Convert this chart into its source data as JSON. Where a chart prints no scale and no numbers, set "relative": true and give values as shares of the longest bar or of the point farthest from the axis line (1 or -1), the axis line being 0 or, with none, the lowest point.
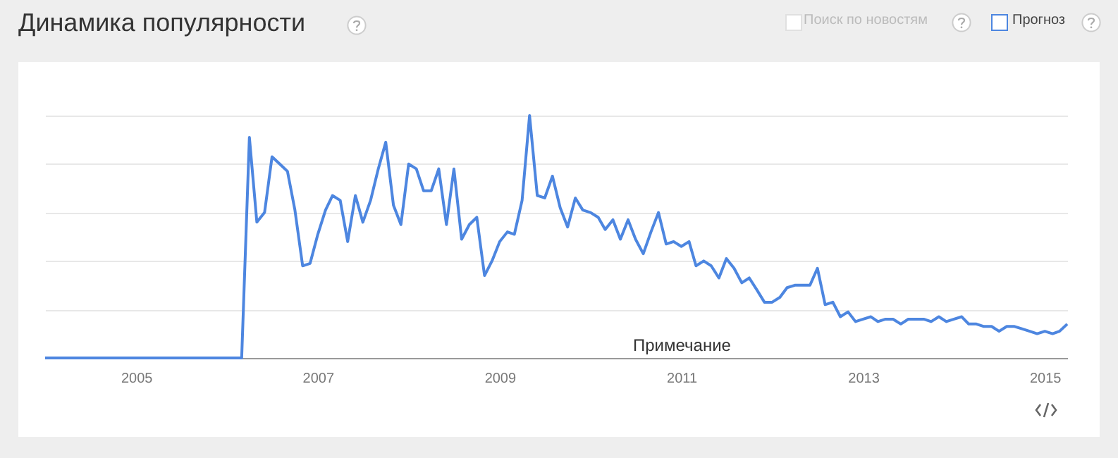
{
  "chart_data": {
    "type": "line",
    "title": "Динамика популярности",
    "relative": true,
    "grid": "y",
    "marker": "none",
    "line_style": "solid",
    "xlim": [
      "2004-01",
      "2015-04"
    ],
    "xticks": [
      "2005",
      "2007",
      "2009",
      "2011",
      "2013",
      "2015"
    ],
    "annotations": [
      "Поиск по новостям",
      "Прогноз",
      "Примечание"
    ],
    "x": [
      "2004-01",
      "2004-02",
      "2004-03",
      "2004-04",
      "2004-05",
      "2004-06",
      "2004-07",
      "2004-08",
      "2004-09",
      "2004-10",
      "2004-11",
      "2004-12",
      "2005-01",
      "2005-02",
      "2005-03",
      "2005-04",
      "2005-05",
      "2005-06",
      "2005-07",
      "2005-08",
      "2005-09",
      "2005-10",
      "2005-11",
      "2005-12",
      "2006-01",
      "2006-02",
      "2006-03",
      "2006-04",
      "2006-05",
      "2006-06",
      "2006-07",
      "2006-08",
      "2006-09",
      "2006-10",
      "2006-11",
      "2006-12",
      "2007-01",
      "2007-02",
      "2007-03",
      "2007-04",
      "2007-05",
      "2007-06",
      "2007-07",
      "2007-08",
      "2007-09",
      "2007-10",
      "2007-11",
      "2007-12",
      "2008-01",
      "2008-02",
      "2008-03",
      "2008-04",
      "2008-05",
      "2008-06",
      "2008-07",
      "2008-08",
      "2008-09",
      "2008-10",
      "2008-11",
      "2008-12",
      "2009-01",
      "2009-02",
      "2009-03",
      "2009-04",
      "2009-05",
      "2009-06",
      "2009-07",
      "2009-08",
      "2009-09",
      "2009-10",
      "2009-11",
      "2009-12",
      "2010-01",
      "2010-02",
      "2010-03",
      "2010-04",
      "2010-05",
      "2010-06",
      "2010-07",
      "2010-08",
      "2010-09",
      "2010-10",
      "2010-11",
      "2010-12",
      "2011-01",
      "2011-02",
      "2011-03",
      "2011-04",
      "2011-05",
      "2011-06",
      "2011-07",
      "2011-08",
      "2011-09",
      "2011-10",
      "2011-11",
      "2011-12",
      "2012-01",
      "2012-02",
      "2012-03",
      "2012-04",
      "2012-05",
      "2012-06",
      "2012-07",
      "2012-08",
      "2012-09",
      "2012-10",
      "2012-11",
      "2012-12",
      "2013-01",
      "2013-02",
      "2013-03",
      "2013-04",
      "2013-05",
      "2013-06",
      "2013-07",
      "2013-08",
      "2013-09",
      "2013-10",
      "2013-11",
      "2013-12",
      "2014-01",
      "2014-02",
      "2014-03",
      "2014-04",
      "2014-05",
      "2014-06",
      "2014-07",
      "2014-08",
      "2014-09",
      "2014-10",
      "2014-11",
      "2014-12",
      "2015-01",
      "2015-02",
      "2015-03",
      "2015-04"
    ],
    "series": [
      {
        "color": "#4d86e0",
        "values": [
          0,
          0,
          0,
          0,
          0,
          0,
          0,
          0,
          0,
          0,
          0,
          0,
          0,
          0,
          0,
          0,
          0,
          0,
          0,
          0,
          0,
          0,
          0,
          0,
          0,
          0,
          0,
          0.91,
          0.56,
          0.6,
          0.83,
          0.8,
          0.77,
          0.61,
          0.38,
          0.39,
          0.51,
          0.61,
          0.67,
          0.65,
          0.48,
          0.67,
          0.56,
          0.65,
          0.78,
          0.89,
          0.63,
          0.55,
          0.8,
          0.78,
          0.69,
          0.69,
          0.78,
          0.55,
          0.78,
          0.49,
          0.55,
          0.58,
          0.34,
          0.4,
          0.48,
          0.52,
          0.51,
          0.65,
          1.0,
          0.67,
          0.66,
          0.75,
          0.62,
          0.54,
          0.66,
          0.61,
          0.6,
          0.58,
          0.53,
          0.57,
          0.49,
          0.57,
          0.49,
          0.43,
          0.52,
          0.6,
          0.47,
          0.48,
          0.46,
          0.48,
          0.38,
          0.4,
          0.38,
          0.33,
          0.41,
          0.37,
          0.31,
          0.33,
          0.28,
          0.23,
          0.23,
          0.25,
          0.29,
          0.3,
          0.3,
          0.3,
          0.37,
          0.22,
          0.23,
          0.17,
          0.19,
          0.15,
          0.16,
          0.17,
          0.15,
          0.16,
          0.16,
          0.14,
          0.16,
          0.16,
          0.16,
          0.15,
          0.17,
          0.15,
          0.16,
          0.17,
          0.14,
          0.14,
          0.13,
          0.13,
          0.11,
          0.13,
          0.13,
          0.12,
          0.11,
          0.1,
          0.11,
          0.1,
          0.11,
          0.14
        ]
      }
    ]
  }
}
